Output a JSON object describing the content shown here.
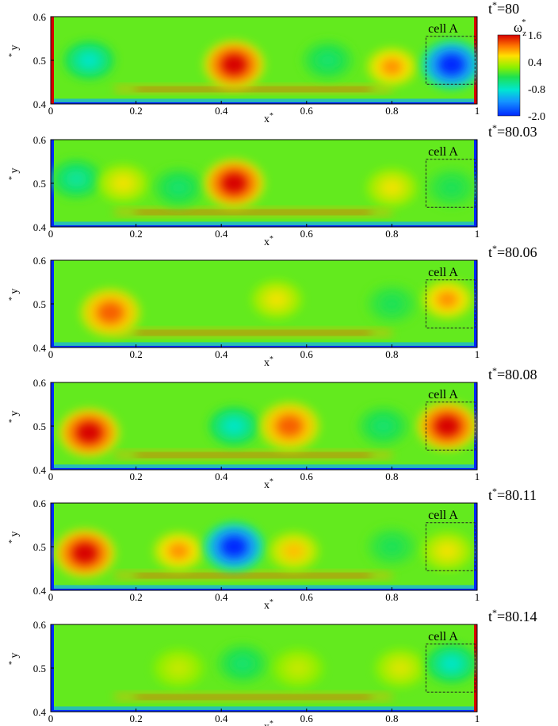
{
  "figure": {
    "panels": [
      {
        "time_label": "t*=80"
      },
      {
        "time_label": "t*=80.03"
      },
      {
        "time_label": "t*=80.06"
      },
      {
        "time_label": "t*=80.08"
      },
      {
        "time_label": "t*=80.11"
      },
      {
        "time_label": "t*=80.14"
      }
    ],
    "x_ticks": [
      "0",
      "0.2",
      "0.4",
      "0.6",
      "0.8",
      "1"
    ],
    "y_ticks": [
      "0.6",
      "0.5",
      "0.4"
    ],
    "x_axis_label": "x*",
    "y_axis_label": "y*",
    "cell_label": "cell A",
    "colorbar": {
      "title": "ω_z*",
      "ticks": [
        "1.6",
        "0.4",
        "-0.8",
        "-2.0"
      ],
      "colors": [
        "#d40000",
        "#ff7a00",
        "#ffe000",
        "#8cf000",
        "#20e050",
        "#00f0c0",
        "#1aa0ff",
        "#0030ff"
      ]
    }
  },
  "chart_data": [
    {
      "type": "heatmap",
      "time": "t*=80",
      "x_range": [
        0,
        1
      ],
      "y_range": [
        0.4,
        0.6
      ],
      "color_range": [
        -2.0,
        1.6
      ],
      "features": [
        {
          "x": 0.09,
          "y": 0.5,
          "vorticity": -0.8
        },
        {
          "x": 0.43,
          "y": 0.49,
          "vorticity": 1.6
        },
        {
          "x": 0.65,
          "y": 0.5,
          "vorticity": -0.4
        },
        {
          "x": 0.8,
          "y": 0.485,
          "vorticity": 1.0
        },
        {
          "x": 0.94,
          "y": 0.49,
          "vorticity": -2.0
        }
      ]
    },
    {
      "type": "heatmap",
      "time": "t*=80.03",
      "x_range": [
        0,
        1
      ],
      "y_range": [
        0.4,
        0.6
      ],
      "color_range": [
        -2.0,
        1.6
      ],
      "features": [
        {
          "x": 0.06,
          "y": 0.51,
          "vorticity": -0.6
        },
        {
          "x": 0.17,
          "y": 0.5,
          "vorticity": 0.6
        },
        {
          "x": 0.3,
          "y": 0.49,
          "vorticity": -0.4
        },
        {
          "x": 0.43,
          "y": 0.5,
          "vorticity": 1.6
        },
        {
          "x": 0.8,
          "y": 0.49,
          "vorticity": 0.6
        },
        {
          "x": 0.94,
          "y": 0.49,
          "vorticity": -0.3
        }
      ]
    },
    {
      "type": "heatmap",
      "time": "t*=80.06",
      "x_range": [
        0,
        1
      ],
      "y_range": [
        0.4,
        0.6
      ],
      "color_range": [
        -2.0,
        1.6
      ],
      "features": [
        {
          "x": 0.14,
          "y": 0.48,
          "vorticity": 1.2
        },
        {
          "x": 0.53,
          "y": 0.51,
          "vorticity": 0.6
        },
        {
          "x": 0.8,
          "y": 0.5,
          "vorticity": -0.3
        },
        {
          "x": 0.93,
          "y": 0.51,
          "vorticity": 1.0
        }
      ]
    },
    {
      "type": "heatmap",
      "time": "t*=80.08",
      "x_range": [
        0,
        1
      ],
      "y_range": [
        0.4,
        0.6
      ],
      "color_range": [
        -2.0,
        1.6
      ],
      "features": [
        {
          "x": 0.09,
          "y": 0.485,
          "vorticity": 1.6
        },
        {
          "x": 0.43,
          "y": 0.5,
          "vorticity": -0.8
        },
        {
          "x": 0.56,
          "y": 0.5,
          "vorticity": 1.2
        },
        {
          "x": 0.78,
          "y": 0.5,
          "vorticity": -0.4
        },
        {
          "x": 0.93,
          "y": 0.5,
          "vorticity": 1.6
        }
      ]
    },
    {
      "type": "heatmap",
      "time": "t*=80.11",
      "x_range": [
        0,
        1
      ],
      "y_range": [
        0.4,
        0.6
      ],
      "color_range": [
        -2.0,
        1.6
      ],
      "features": [
        {
          "x": 0.08,
          "y": 0.485,
          "vorticity": 1.6
        },
        {
          "x": 0.3,
          "y": 0.49,
          "vorticity": 1.0
        },
        {
          "x": 0.43,
          "y": 0.5,
          "vorticity": -2.0
        },
        {
          "x": 0.57,
          "y": 0.49,
          "vorticity": 0.8
        },
        {
          "x": 0.8,
          "y": 0.5,
          "vorticity": -0.3
        },
        {
          "x": 0.93,
          "y": 0.49,
          "vorticity": 0.6
        }
      ]
    },
    {
      "type": "heatmap",
      "time": "t*=80.14",
      "x_range": [
        0,
        1
      ],
      "y_range": [
        0.4,
        0.6
      ],
      "color_range": [
        -2.0,
        1.6
      ],
      "features": [
        {
          "x": 0.3,
          "y": 0.5,
          "vorticity": 0.4
        },
        {
          "x": 0.45,
          "y": 0.51,
          "vorticity": -0.4
        },
        {
          "x": 0.58,
          "y": 0.5,
          "vorticity": 0.4
        },
        {
          "x": 0.82,
          "y": 0.5,
          "vorticity": 0.5
        },
        {
          "x": 0.94,
          "y": 0.51,
          "vorticity": -0.8
        }
      ]
    }
  ]
}
